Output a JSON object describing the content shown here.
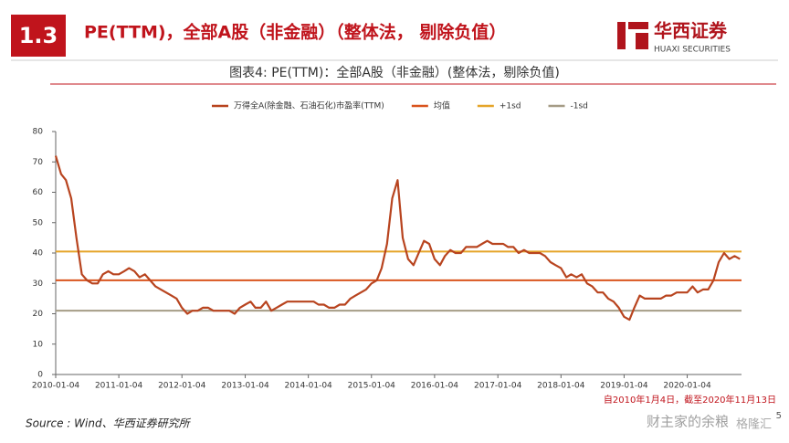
{
  "header": {
    "section": "1.3",
    "title": "PE(TTM)，全部A股（非金融）（整体法， 剔除负值）",
    "logo_cn": "华西证券",
    "logo_en": "HUAXI SECURITIES"
  },
  "chart_data": {
    "type": "line",
    "title": "图表4: PE(TTM)：全部A股（非金融）(整体法，剔除负值)",
    "x": [
      "2010-01-04",
      "2010-02-04",
      "2010-03-04",
      "2010-04-04",
      "2010-05-04",
      "2010-06-04",
      "2010-07-04",
      "2010-08-04",
      "2010-09-04",
      "2010-10-04",
      "2010-11-04",
      "2010-12-04",
      "2011-01-04",
      "2011-02-04",
      "2011-03-04",
      "2011-04-04",
      "2011-05-04",
      "2011-06-04",
      "2011-07-04",
      "2011-08-04",
      "2011-09-04",
      "2011-10-04",
      "2011-11-04",
      "2011-12-04",
      "2012-01-04",
      "2012-02-04",
      "2012-03-04",
      "2012-04-04",
      "2012-05-04",
      "2012-06-04",
      "2012-07-04",
      "2012-08-04",
      "2012-09-04",
      "2012-10-04",
      "2012-11-04",
      "2012-12-04",
      "2013-01-04",
      "2013-02-04",
      "2013-03-04",
      "2013-04-04",
      "2013-05-04",
      "2013-06-04",
      "2013-07-04",
      "2013-08-04",
      "2013-09-04",
      "2013-10-04",
      "2013-11-04",
      "2013-12-04",
      "2014-01-04",
      "2014-02-04",
      "2014-03-04",
      "2014-04-04",
      "2014-05-04",
      "2014-06-04",
      "2014-07-04",
      "2014-08-04",
      "2014-09-04",
      "2014-10-04",
      "2014-11-04",
      "2014-12-04",
      "2015-01-04",
      "2015-02-04",
      "2015-03-04",
      "2015-04-04",
      "2015-05-04",
      "2015-06-04",
      "2015-07-04",
      "2015-08-04",
      "2015-09-04",
      "2015-10-04",
      "2015-11-04",
      "2015-12-04",
      "2016-01-04",
      "2016-02-04",
      "2016-03-04",
      "2016-04-04",
      "2016-05-04",
      "2016-06-04",
      "2016-07-04",
      "2016-08-04",
      "2016-09-04",
      "2016-10-04",
      "2016-11-04",
      "2016-12-04",
      "2017-01-04",
      "2017-02-04",
      "2017-03-04",
      "2017-04-04",
      "2017-05-04",
      "2017-06-04",
      "2017-07-04",
      "2017-08-04",
      "2017-09-04",
      "2017-10-04",
      "2017-11-04",
      "2017-12-04",
      "2018-01-04",
      "2018-02-04",
      "2018-03-04",
      "2018-04-04",
      "2018-05-04",
      "2018-06-04",
      "2018-07-04",
      "2018-08-04",
      "2018-09-04",
      "2018-10-04",
      "2018-11-04",
      "2018-12-04",
      "2019-01-04",
      "2019-02-04",
      "2019-03-04",
      "2019-04-04",
      "2019-05-04",
      "2019-06-04",
      "2019-07-04",
      "2019-08-04",
      "2019-09-04",
      "2019-10-04",
      "2019-11-04",
      "2019-12-04",
      "2020-01-04",
      "2020-02-04",
      "2020-03-04",
      "2020-04-04",
      "2020-05-04",
      "2020-06-04",
      "2020-07-04",
      "2020-08-04",
      "2020-09-04",
      "2020-10-04",
      "2020-11-04"
    ],
    "series": [
      {
        "name": "万得全A(除金融、石油石化)市盈率(TTM)",
        "color": "#b8441f",
        "values": [
          72,
          66,
          64,
          58,
          45,
          33,
          31,
          30,
          30,
          33,
          34,
          33,
          33,
          34,
          35,
          34,
          32,
          33,
          31,
          29,
          28,
          27,
          26,
          25,
          22,
          20,
          21,
          21,
          22,
          22,
          21,
          21,
          21,
          21,
          20,
          22,
          23,
          24,
          22,
          22,
          24,
          21,
          22,
          23,
          24,
          24,
          24,
          24,
          24,
          24,
          23,
          23,
          22,
          22,
          23,
          23,
          25,
          26,
          27,
          28,
          30,
          31,
          35,
          43,
          58,
          64,
          45,
          38,
          36,
          40,
          44,
          43,
          38,
          36,
          39,
          41,
          40,
          40,
          42,
          42,
          42,
          43,
          44,
          43,
          43,
          43,
          42,
          42,
          40,
          41,
          40,
          40,
          40,
          39,
          37,
          36,
          35,
          32,
          33,
          32,
          33,
          30,
          29,
          27,
          27,
          25,
          24,
          22,
          19,
          18,
          22,
          26,
          25,
          25,
          25,
          25,
          26,
          26,
          27,
          27,
          27,
          29,
          27,
          28,
          28,
          31,
          37,
          40,
          38,
          39,
          38
        ]
      }
    ],
    "hlines": [
      {
        "name": "均值",
        "color": "#d9541e",
        "value": 31
      },
      {
        "name": "+1sd",
        "color": "#e5a52a",
        "value": 40.5
      },
      {
        "name": "-1sd",
        "color": "#a59c86",
        "value": 21
      }
    ],
    "xlim": [
      "2010-01-04",
      "2020-11-13"
    ],
    "xticks": [
      "2010-01-04",
      "2011-01-04",
      "2012-01-04",
      "2013-01-04",
      "2014-01-04",
      "2015-01-04",
      "2016-01-04",
      "2017-01-04",
      "2018-01-04",
      "2019-01-04",
      "2020-01-04"
    ],
    "ylim": [
      0,
      80
    ],
    "yticks": [
      0,
      10,
      20,
      30,
      40,
      50,
      60,
      70,
      80
    ],
    "note": "自2010年1月4日，截至2020年11月13日"
  },
  "footer": {
    "source": "Source : Wind、华西证券研究所",
    "page": "5",
    "watermark": "财主家的余粮",
    "watermark2": "格隆汇"
  }
}
